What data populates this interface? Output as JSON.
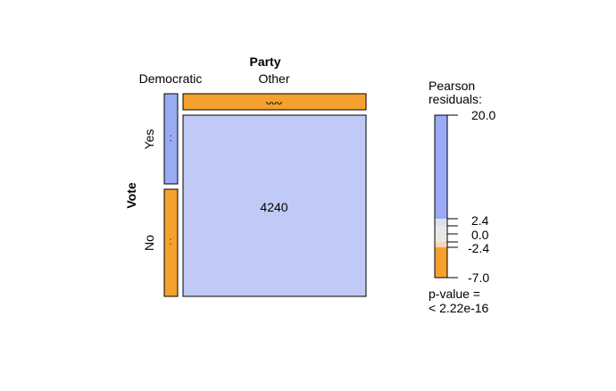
{
  "chart_data": {
    "type": "mosaic",
    "title": "",
    "x_variable": "Party",
    "y_variable": "Vote",
    "x_levels": [
      "Democratic",
      "Other"
    ],
    "y_levels": [
      "Yes",
      "No"
    ],
    "cells": [
      {
        "party": "Democratic",
        "vote": "Yes",
        "label": "",
        "shade": "blue",
        "residual_sign": "positive"
      },
      {
        "party": "Democratic",
        "vote": "No",
        "label": "",
        "shade": "orange",
        "residual_sign": "negative"
      },
      {
        "party": "Other",
        "vote": "Yes",
        "label": "4240",
        "shade": "lightblue",
        "residual_sign": "positive"
      },
      {
        "party": "Other",
        "vote": "No",
        "label": "",
        "shade": "orange",
        "residual_sign": "negative"
      }
    ],
    "shading_legend": {
      "title_line1": "Pearson",
      "title_line2": "residuals:",
      "ticks": [
        "20.0",
        "2.4",
        "0.0",
        "-2.4",
        "-7.0"
      ],
      "range": [
        -7.0,
        20.0
      ],
      "cutoffs": [
        -2.4,
        2.4
      ],
      "colors": {
        "strong_positive": "#9aaaf4",
        "weak_positive": "#dde0f2",
        "neutral": "#e8e8e8",
        "weak_negative": "#f5d9b5",
        "strong_negative": "#f5a12d",
        "light_positive_cell": "#c1caf6"
      }
    },
    "p_value_line1": "p-value =",
    "p_value_line2": "< 2.22e-16"
  }
}
